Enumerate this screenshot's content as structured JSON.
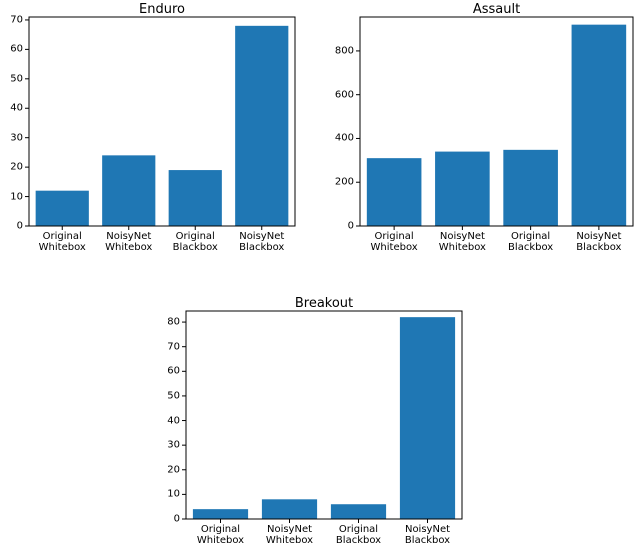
{
  "chart_data": [
    {
      "type": "bar",
      "title": "Enduro",
      "categories": [
        "Original\nWhitebox",
        "NoisyNet\nWhitebox",
        "Original\nBlackbox",
        "NoisyNet\nBlackbox"
      ],
      "values": [
        12,
        24,
        19,
        68
      ],
      "color": "#1f77b4",
      "ylim": [
        0,
        71
      ],
      "yticks": [
        0,
        10,
        20,
        30,
        40,
        50,
        60,
        70
      ]
    },
    {
      "type": "bar",
      "title": "Assault",
      "categories": [
        "Original\nWhitebox",
        "NoisyNet\nWhitebox",
        "Original\nBlackbox",
        "NoisyNet\nBlackbox"
      ],
      "values": [
        310,
        340,
        348,
        920
      ],
      "color": "#1f77b4",
      "ylim": [
        0,
        955
      ],
      "yticks": [
        0,
        200,
        400,
        600,
        800
      ]
    },
    {
      "type": "bar",
      "title": "Breakout",
      "categories": [
        "Original\nWhitebox",
        "NoisyNet\nWhitebox",
        "Original\nBlackbox",
        "NoisyNet\nBlackbox"
      ],
      "values": [
        4,
        8,
        6,
        82
      ],
      "color": "#1f77b4",
      "ylim": [
        0,
        84.5
      ],
      "yticks": [
        0,
        10,
        20,
        30,
        40,
        50,
        60,
        70,
        80
      ]
    }
  ]
}
